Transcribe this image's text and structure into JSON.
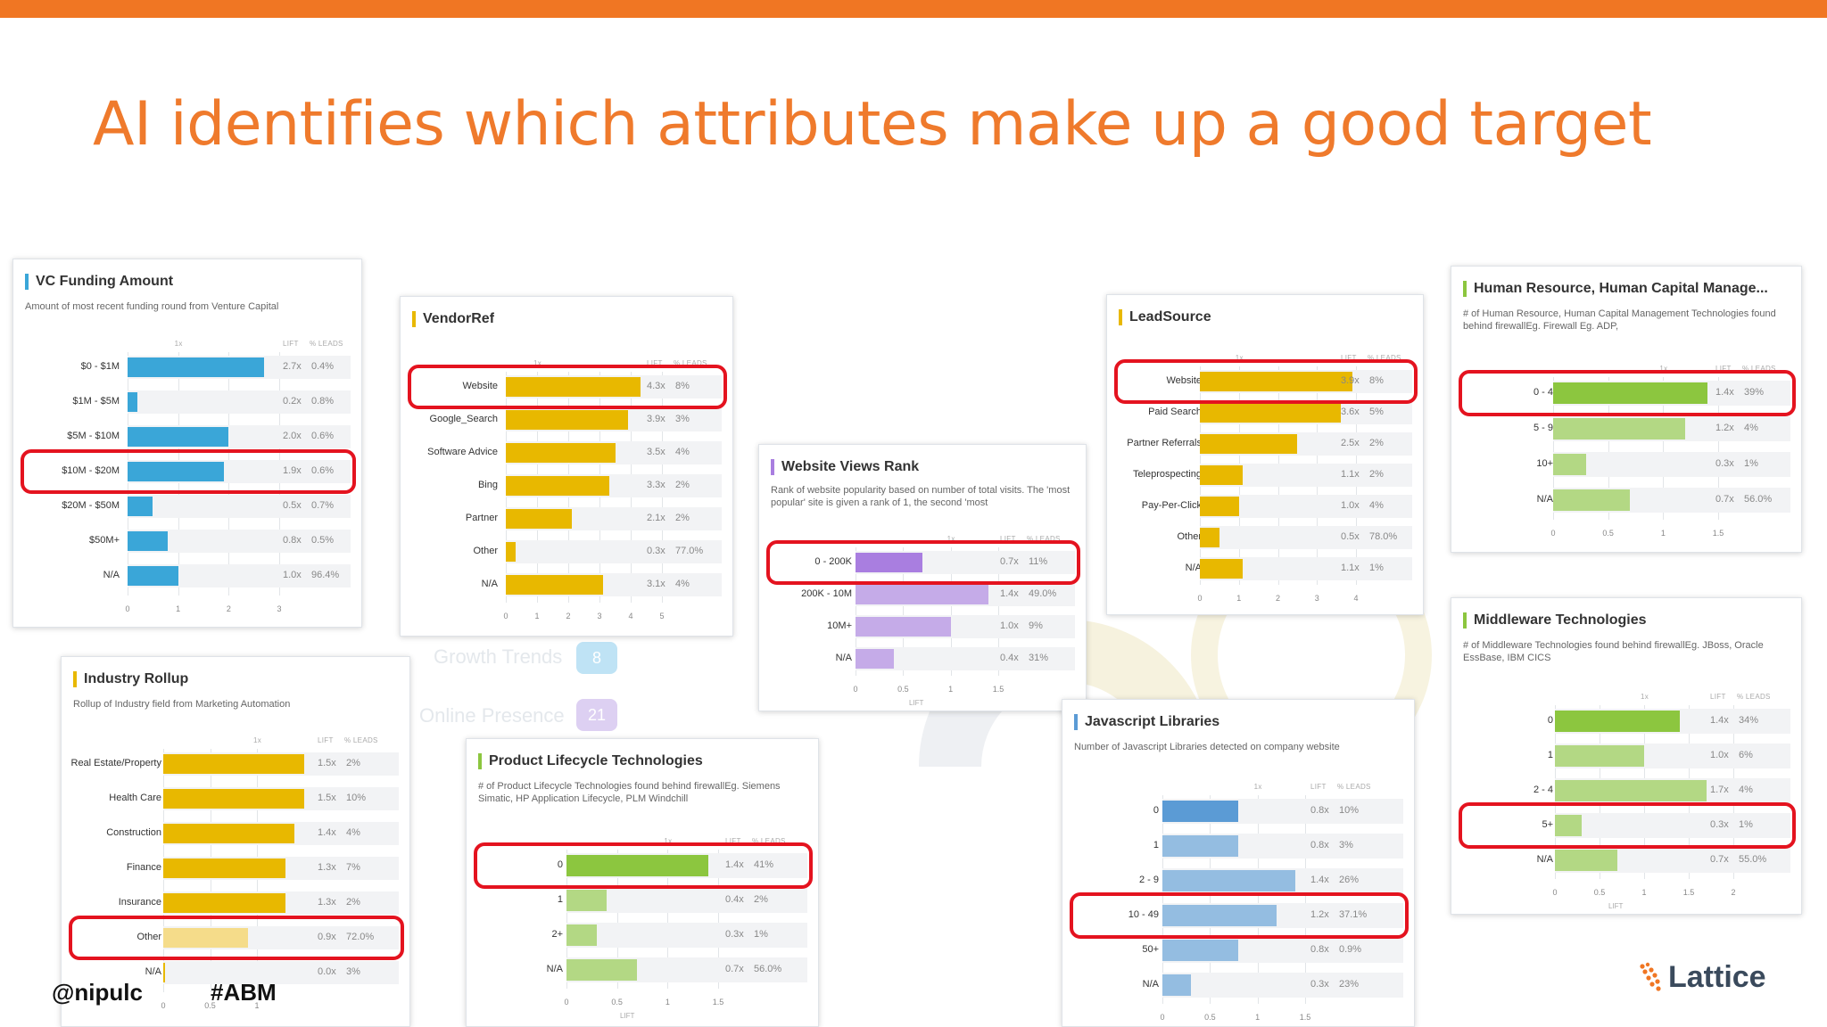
{
  "slide": {
    "title": "AI identifies which attributes make up a good target",
    "handle": "@nipulc",
    "hashtag": "#ABM",
    "logo_text": "Lattice",
    "accent": "#f07623"
  },
  "background": {
    "items": [
      "Growth Trends",
      "Online Presence"
    ],
    "badge_values": [
      "8",
      "21"
    ]
  },
  "column_headers": {
    "one_x": "1x",
    "lift": "LIFT",
    "leads": "% LEADS",
    "axis": "LIFT"
  },
  "cards": [
    {
      "id": "vc-funding",
      "title": "VC Funding Amount",
      "desc": "Amount of most recent funding round from Venture Capital",
      "color": "#3aa6d8",
      "rows": [
        {
          "label": "$0 - $1M",
          "lift": "2.7x",
          "leads": "0.4%",
          "value": 2.7
        },
        {
          "label": "$1M - $5M",
          "lift": "0.2x",
          "leads": "0.8%",
          "value": 0.2
        },
        {
          "label": "$5M - $10M",
          "lift": "2.0x",
          "leads": "0.6%",
          "value": 2.0
        },
        {
          "label": "$10M - $20M",
          "lift": "1.9x",
          "leads": "0.6%",
          "value": 1.9
        },
        {
          "label": "$20M - $50M",
          "lift": "0.5x",
          "leads": "0.7%",
          "value": 0.5
        },
        {
          "label": "$50M+",
          "lift": "0.8x",
          "leads": "0.5%",
          "value": 0.8
        },
        {
          "label": "N/A",
          "lift": "1.0x",
          "leads": "96.4%",
          "value": 1.0
        }
      ],
      "ticks": [
        "0",
        "1",
        "2",
        "3"
      ],
      "axis_max": 3,
      "highlight": 3
    },
    {
      "id": "vendor-ref",
      "title": "VendorRef",
      "desc": "",
      "color": "#e8b800",
      "rows": [
        {
          "label": "Website",
          "lift": "4.3x",
          "leads": "8%",
          "value": 4.3
        },
        {
          "label": "Google_Search",
          "lift": "3.9x",
          "leads": "3%",
          "value": 3.9
        },
        {
          "label": "Software Advice",
          "lift": "3.5x",
          "leads": "4%",
          "value": 3.5
        },
        {
          "label": "Bing",
          "lift": "3.3x",
          "leads": "2%",
          "value": 3.3
        },
        {
          "label": "Partner",
          "lift": "2.1x",
          "leads": "2%",
          "value": 2.1
        },
        {
          "label": "Other",
          "lift": "0.3x",
          "leads": "77.0%",
          "value": 0.3
        },
        {
          "label": "N/A",
          "lift": "3.1x",
          "leads": "4%",
          "value": 3.1
        }
      ],
      "ticks": [
        "0",
        "1",
        "2",
        "3",
        "4",
        "5"
      ],
      "axis_max": 5,
      "highlight": 0
    },
    {
      "id": "website-views",
      "title": "Website Views Rank",
      "desc": "Rank of website popularity based on number of total visits. The 'most popular' site is given a rank of 1, the second 'most",
      "color": "#a97ee0",
      "rows": [
        {
          "label": "0 - 200K",
          "lift": "0.7x",
          "leads": "11%",
          "value": 0.7
        },
        {
          "label": "200K - 10M",
          "lift": "1.4x",
          "leads": "49.0%",
          "value": 1.4
        },
        {
          "label": "10M+",
          "lift": "1.0x",
          "leads": "9%",
          "value": 1.0
        },
        {
          "label": "N/A",
          "lift": "0.4x",
          "leads": "31%",
          "value": 0.4
        }
      ],
      "ticks": [
        "0",
        "0.5",
        "1",
        "1.5"
      ],
      "axis_max": 1.5,
      "highlight": 0
    },
    {
      "id": "lead-source",
      "title": "LeadSource",
      "desc": "",
      "color": "#e8b800",
      "rows": [
        {
          "label": "Website",
          "lift": "3.9x",
          "leads": "8%",
          "value": 3.9
        },
        {
          "label": "Paid Search",
          "lift": "3.6x",
          "leads": "5%",
          "value": 3.6
        },
        {
          "label": "Partner Referrals",
          "lift": "2.5x",
          "leads": "2%",
          "value": 2.5
        },
        {
          "label": "Teleprospecting",
          "lift": "1.1x",
          "leads": "2%",
          "value": 1.1
        },
        {
          "label": "Pay-Per-Click",
          "lift": "1.0x",
          "leads": "4%",
          "value": 1.0
        },
        {
          "label": "Other",
          "lift": "0.5x",
          "leads": "78.0%",
          "value": 0.5
        },
        {
          "label": "N/A",
          "lift": "1.1x",
          "leads": "1%",
          "value": 1.1
        }
      ],
      "ticks": [
        "0",
        "1",
        "2",
        "3",
        "4"
      ],
      "axis_max": 4,
      "highlight": 0
    },
    {
      "id": "human-resource",
      "title": "Human Resource, Human Capital Manage...",
      "desc": "# of Human Resource, Human Capital Management Technologies found behind firewallEg. Firewall Eg. ADP,",
      "color": "#8cc63f",
      "rows": [
        {
          "label": "0 - 4",
          "lift": "1.4x",
          "leads": "39%",
          "value": 1.4
        },
        {
          "label": "5 - 9",
          "lift": "1.2x",
          "leads": "4%",
          "value": 1.2
        },
        {
          "label": "10+",
          "lift": "0.3x",
          "leads": "1%",
          "value": 0.3
        },
        {
          "label": "N/A",
          "lift": "0.7x",
          "leads": "56.0%",
          "value": 0.7
        }
      ],
      "ticks": [
        "0",
        "0.5",
        "1",
        "1.5"
      ],
      "axis_max": 1.5,
      "highlight": 0
    },
    {
      "id": "industry-rollup",
      "title": "Industry Rollup",
      "desc": "Rollup of Industry field from Marketing Automation",
      "color": "#e8b800",
      "rows": [
        {
          "label": "Real Estate/Property",
          "lift": "1.5x",
          "leads": "2%",
          "value": 1.5
        },
        {
          "label": "Health Care",
          "lift": "1.5x",
          "leads": "10%",
          "value": 1.5
        },
        {
          "label": "Construction",
          "lift": "1.4x",
          "leads": "4%",
          "value": 1.4
        },
        {
          "label": "Finance",
          "lift": "1.3x",
          "leads": "7%",
          "value": 1.3
        },
        {
          "label": "Insurance",
          "lift": "1.3x",
          "leads": "2%",
          "value": 1.3
        },
        {
          "label": "Other",
          "lift": "0.9x",
          "leads": "72.0%",
          "value": 0.9
        },
        {
          "label": "N/A",
          "lift": "0.0x",
          "leads": "3%",
          "value": 0.0
        }
      ],
      "ticks": [
        "0",
        "0.5",
        "1"
      ],
      "axis_max": 2,
      "highlight": 5
    },
    {
      "id": "product-lifecycle",
      "title": "Product Lifecycle Technologies",
      "desc": "# of Product Lifecycle Technologies found behind firewallEg. Siemens Simatic, HP Application Lifecycle, PLM Windchill",
      "color": "#8cc63f",
      "rows": [
        {
          "label": "0",
          "lift": "1.4x",
          "leads": "41%",
          "value": 1.4
        },
        {
          "label": "1",
          "lift": "0.4x",
          "leads": "2%",
          "value": 0.4
        },
        {
          "label": "2+",
          "lift": "0.3x",
          "leads": "1%",
          "value": 0.3
        },
        {
          "label": "N/A",
          "lift": "0.7x",
          "leads": "56.0%",
          "value": 0.7
        }
      ],
      "ticks": [
        "0",
        "0.5",
        "1",
        "1.5"
      ],
      "axis_max": 1.5,
      "highlight": 0
    },
    {
      "id": "javascript-libraries",
      "title": "Javascript Libraries",
      "desc": "Number of Javascript Libraries detected on company website",
      "color": "#5b9bd5",
      "rows": [
        {
          "label": "0",
          "lift": "0.8x",
          "leads": "10%",
          "value": 0.8
        },
        {
          "label": "1",
          "lift": "0.8x",
          "leads": "3%",
          "value": 0.8
        },
        {
          "label": "2 - 9",
          "lift": "1.4x",
          "leads": "26%",
          "value": 1.4
        },
        {
          "label": "10 - 49",
          "lift": "1.2x",
          "leads": "37.1%",
          "value": 1.2
        },
        {
          "label": "50+",
          "lift": "0.8x",
          "leads": "0.9%",
          "value": 0.8
        },
        {
          "label": "N/A",
          "lift": "0.3x",
          "leads": "23%",
          "value": 0.3
        }
      ],
      "ticks": [
        "0",
        "0.5",
        "1",
        "1.5"
      ],
      "axis_max": 1.5,
      "highlight": 3
    },
    {
      "id": "middleware",
      "title": "Middleware Technologies",
      "desc": "# of Middleware Technologies found behind firewallEg. JBoss, Oracle EssBase, IBM CICS",
      "color": "#8cc63f",
      "rows": [
        {
          "label": "0",
          "lift": "1.4x",
          "leads": "34%",
          "value": 1.4
        },
        {
          "label": "1",
          "lift": "1.0x",
          "leads": "6%",
          "value": 1.0
        },
        {
          "label": "2 - 4",
          "lift": "1.7x",
          "leads": "4%",
          "value": 1.7
        },
        {
          "label": "5+",
          "lift": "0.3x",
          "leads": "1%",
          "value": 0.3
        },
        {
          "label": "N/A",
          "lift": "0.7x",
          "leads": "55.0%",
          "value": 0.7
        }
      ],
      "ticks": [
        "0",
        "0.5",
        "1",
        "1.5",
        "2"
      ],
      "axis_max": 2,
      "highlight": 3
    }
  ]
}
